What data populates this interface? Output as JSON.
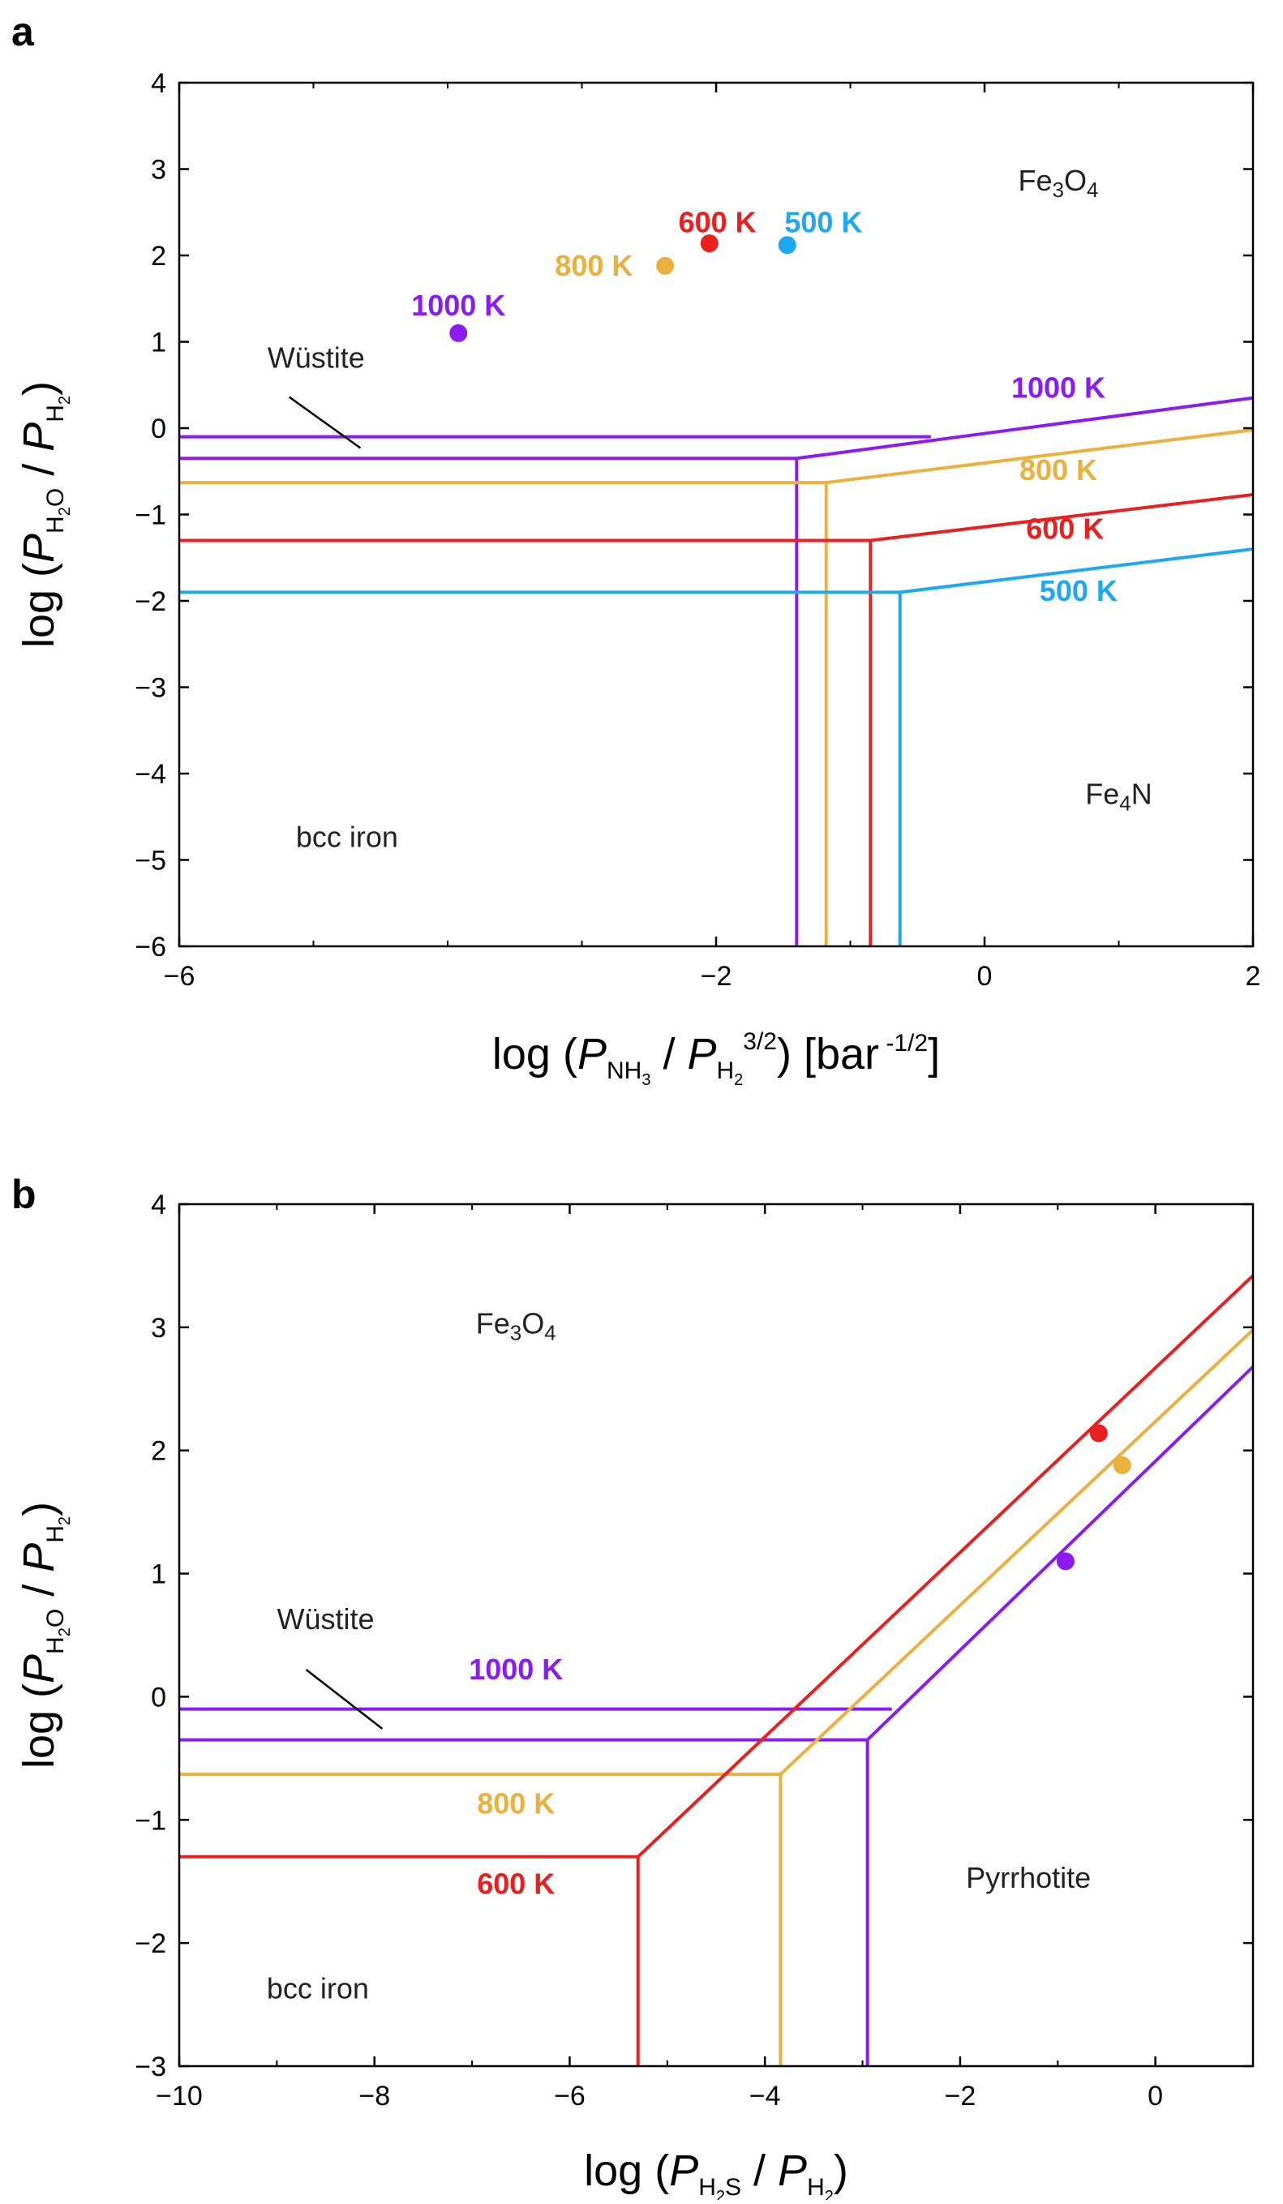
{
  "colors": {
    "k1000": "#8a1cf0",
    "k800": "#ebb13f",
    "k600": "#e8201f",
    "k500": "#1ea8f0",
    "axis": "#000000",
    "text": "#222222"
  },
  "chart_data": [
    {
      "panel_label": "a",
      "type": "line",
      "title": "",
      "xlabel": {
        "base": "log (",
        "P1": "P",
        "sub1": "NH",
        "sub1b": "3",
        "slash": " / ",
        "P2": "P",
        "sub2": "H",
        "sub2b": "2",
        "sup2": "3/2",
        "tail": ") [bar",
        "unit_sup": " -1/2",
        "close": "]"
      },
      "ylabel": {
        "base": "log (",
        "P1": "P",
        "sub1": "H",
        "sub1b": "2",
        "sub1c": "O",
        "slash": " / ",
        "P2": "P",
        "sub2": "H",
        "sub2b": "2",
        "close": ")"
      },
      "xlim": [
        -6,
        2
      ],
      "ylim": [
        -6,
        4
      ],
      "xticks": [
        -6,
        -2,
        0,
        2
      ],
      "xtick_labels": [
        "−6",
        "−2",
        "0",
        "2"
      ],
      "xminor": [
        -5,
        -4,
        -3,
        -1,
        1
      ],
      "yticks": [
        -6,
        -5,
        -4,
        -3,
        -2,
        -1,
        0,
        1,
        2,
        3,
        4
      ],
      "ytick_labels": [
        "−6",
        "−5",
        "−4",
        "−3",
        "−2",
        "−1",
        "0",
        "1",
        "2",
        "3",
        "4"
      ],
      "grid": false,
      "series": [
        {
          "name": "1000 K",
          "color_key": "k1000",
          "paths": [
            [
              [
                -6,
                -0.1
              ],
              [
                -0.4,
                -0.1
              ]
            ],
            [
              [
                -6,
                -0.35
              ],
              [
                -1.4,
                -0.35
              ]
            ],
            [
              [
                -1.4,
                -6
              ],
              [
                -1.4,
                -0.35
              ],
              [
                2,
                0.35
              ]
            ]
          ]
        },
        {
          "name": "800 K",
          "color_key": "k800",
          "paths": [
            [
              [
                -6,
                -0.63
              ],
              [
                -1.18,
                -0.63
              ]
            ],
            [
              [
                -1.18,
                -6
              ],
              [
                -1.18,
                -0.63
              ],
              [
                2,
                -0.02
              ]
            ]
          ]
        },
        {
          "name": "600 K",
          "color_key": "k600",
          "paths": [
            [
              [
                -6,
                -1.3
              ],
              [
                -0.85,
                -1.3
              ]
            ],
            [
              [
                -0.85,
                -6
              ],
              [
                -0.85,
                -1.3
              ],
              [
                2,
                -0.77
              ]
            ]
          ]
        },
        {
          "name": "500 K",
          "color_key": "k500",
          "paths": [
            [
              [
                -6,
                -1.9
              ],
              [
                -0.63,
                -1.9
              ]
            ],
            [
              [
                -0.63,
                -6
              ],
              [
                -0.63,
                -1.9
              ],
              [
                2,
                -1.4
              ]
            ]
          ]
        }
      ],
      "points": [
        {
          "label": "1000 K",
          "x": -3.92,
          "y": 1.1,
          "color_key": "k1000"
        },
        {
          "label": "800 K",
          "x": -2.38,
          "y": 1.88,
          "color_key": "k800"
        },
        {
          "label": "600 K",
          "x": -2.05,
          "y": 2.14,
          "color_key": "k600"
        },
        {
          "label": "500 K",
          "x": -1.47,
          "y": 2.12,
          "color_key": "k500"
        }
      ],
      "point_labels": [
        {
          "text": "1000 K",
          "color_key": "k1000",
          "x": -3.92,
          "y": 1.42,
          "anchor": "middle"
        },
        {
          "text": "800 K",
          "color_key": "k800",
          "x": -2.62,
          "y": 1.88,
          "anchor": "end"
        },
        {
          "text": "600 K",
          "color_key": "k600",
          "x": -1.99,
          "y": 2.38,
          "anchor": "middle"
        },
        {
          "text": "500 K",
          "color_key": "k500",
          "x": -1.2,
          "y": 2.38,
          "anchor": "middle"
        }
      ],
      "line_labels": [
        {
          "text": "1000 K",
          "color_key": "k1000",
          "x": 0.55,
          "y": 0.35
        },
        {
          "text": "800 K",
          "color_key": "k800",
          "x": 0.55,
          "y": -0.6
        },
        {
          "text": "600 K",
          "color_key": "k600",
          "x": 0.6,
          "y": -1.28
        },
        {
          "text": "500 K",
          "color_key": "k500",
          "x": 0.7,
          "y": -2.0
        }
      ],
      "regions": [
        {
          "name": "Fe3O4",
          "base1": "Fe",
          "sub1": "3",
          "base2": "O",
          "sub2": "4",
          "x": 0.55,
          "y": 2.75
        },
        {
          "name": "Fe4N",
          "base1": "Fe",
          "sub1": "4",
          "base2": "N",
          "sub2": "",
          "x": 1.0,
          "y": -4.35
        },
        {
          "name": "bcc iron",
          "base1": "bcc iron",
          "sub1": "",
          "base2": "",
          "sub2": "",
          "x": -4.75,
          "y": -4.85
        }
      ],
      "wustite": {
        "text": "Wüstite",
        "x": -4.98,
        "y": 0.7,
        "leader": [
          [
            -5.18,
            0.36
          ],
          [
            -4.65,
            -0.23
          ]
        ]
      }
    },
    {
      "panel_label": "b",
      "type": "line",
      "title": "",
      "xlabel": {
        "base": "log (",
        "P1": "P",
        "sub1": "H",
        "sub1b": "2",
        "sub1c": "S",
        "slash": " / ",
        "P2": "P",
        "sub2": "H",
        "sub2b": "2",
        "close": ")"
      },
      "ylabel": {
        "base": "log (",
        "P1": "P",
        "sub1": "H",
        "sub1b": "2",
        "sub1c": "O",
        "slash": " / ",
        "P2": "P",
        "sub2": "H",
        "sub2b": "2",
        "close": ")"
      },
      "xlim": [
        -10,
        1
      ],
      "ylim": [
        -3,
        4
      ],
      "xticks": [
        -10,
        -8,
        -6,
        -4,
        -2,
        0
      ],
      "xtick_labels": [
        "−10",
        "−8",
        "−6",
        "−4",
        "−2",
        "0"
      ],
      "xminor": [
        -9,
        -7,
        -5,
        -3,
        -1
      ],
      "yticks": [
        -3,
        -2,
        -1,
        0,
        1,
        2,
        3,
        4
      ],
      "ytick_labels": [
        "−3",
        "−2",
        "−1",
        "0",
        "1",
        "2",
        "3",
        "4"
      ],
      "grid": false,
      "series": [
        {
          "name": "1000 K",
          "color_key": "k1000",
          "paths": [
            [
              [
                -10,
                -0.1
              ],
              [
                -2.7,
                -0.1
              ]
            ],
            [
              [
                -10,
                -0.35
              ],
              [
                -2.95,
                -0.35
              ]
            ],
            [
              [
                -2.95,
                -3
              ],
              [
                -2.95,
                -0.35
              ],
              [
                1,
                2.68
              ]
            ]
          ]
        },
        {
          "name": "800 K",
          "color_key": "k800",
          "paths": [
            [
              [
                -10,
                -0.63
              ],
              [
                -3.84,
                -0.63
              ]
            ],
            [
              [
                -3.84,
                -3
              ],
              [
                -3.84,
                -0.63
              ],
              [
                1,
                2.98
              ]
            ]
          ]
        },
        {
          "name": "600 K",
          "color_key": "k600",
          "paths": [
            [
              [
                -10,
                -1.3
              ],
              [
                -5.3,
                -1.3
              ]
            ],
            [
              [
                -5.3,
                -3
              ],
              [
                -5.3,
                -1.3
              ],
              [
                1,
                3.42
              ]
            ]
          ]
        }
      ],
      "points": [
        {
          "label": "1000 K",
          "x": -0.92,
          "y": 1.1,
          "color_key": "k1000"
        },
        {
          "label": "800 K",
          "x": -0.34,
          "y": 1.88,
          "color_key": "k800"
        },
        {
          "label": "600 K",
          "x": -0.58,
          "y": 2.14,
          "color_key": "k600"
        }
      ],
      "point_labels": [],
      "line_labels": [
        {
          "text": "1000 K",
          "color_key": "k1000",
          "x": -6.55,
          "y": 0.14
        },
        {
          "text": "800 K",
          "color_key": "k800",
          "x": -6.55,
          "y": -0.95
        },
        {
          "text": "600 K",
          "color_key": "k600",
          "x": -6.55,
          "y": -1.6
        }
      ],
      "regions": [
        {
          "name": "Fe3O4",
          "base1": "Fe",
          "sub1": "3",
          "base2": "O",
          "sub2": "4",
          "x": -6.55,
          "y": 2.95
        },
        {
          "name": "Pyrrhotite",
          "base1": "Pyrrhotite",
          "sub1": "",
          "base2": "",
          "sub2": "",
          "x": -1.3,
          "y": -1.55
        },
        {
          "name": "bcc iron",
          "base1": "bcc iron",
          "sub1": "",
          "base2": "",
          "sub2": "",
          "x": -8.58,
          "y": -2.45
        }
      ],
      "wustite": {
        "text": "Wüstite",
        "x": -8.5,
        "y": 0.55,
        "leader": [
          [
            -8.7,
            0.22
          ],
          [
            -7.92,
            -0.26
          ]
        ]
      }
    }
  ]
}
